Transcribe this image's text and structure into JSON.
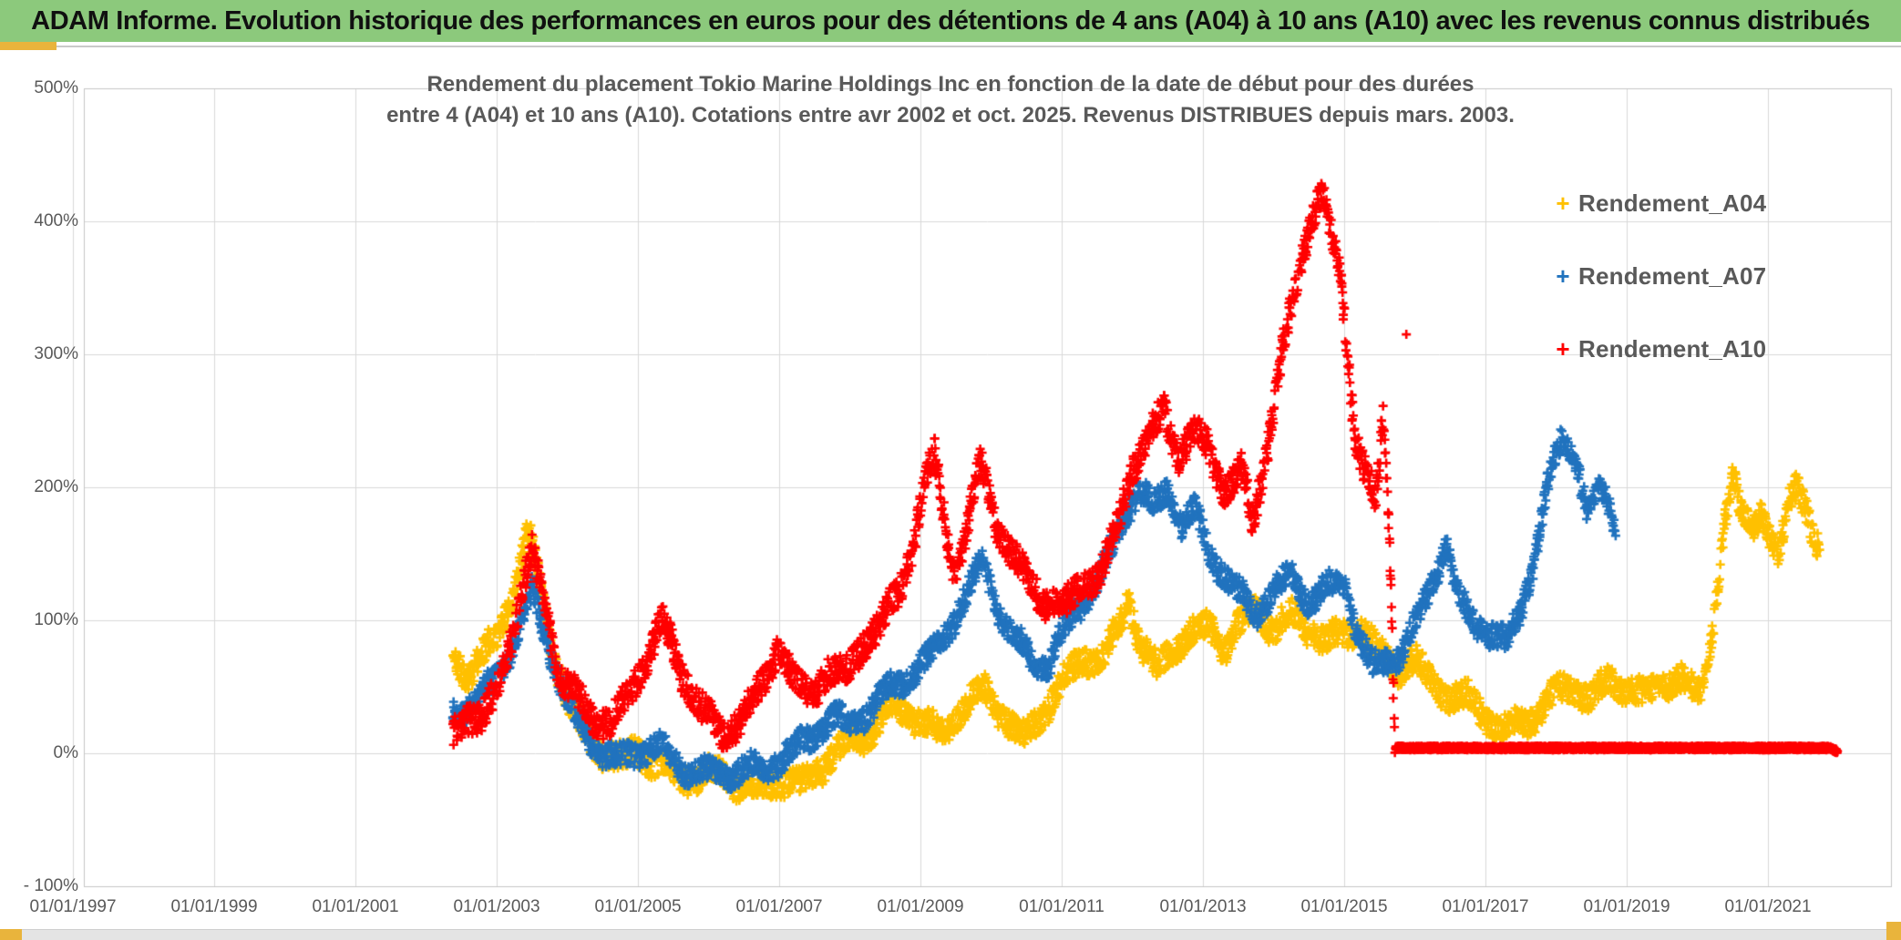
{
  "banner": {
    "title": "ADAM Informe. Evolution historique des performances en euros pour des détentions de 4 ans (A04) à 10 ans (A10) avec les revenus connus distribués"
  },
  "colors": {
    "banner_bg": "#8CC97C",
    "accent_gold": "#E9B43C",
    "grid": "#D9D9D9",
    "axis_border": "#C6C6C6",
    "label_text": "#595959",
    "series_a04": "#FFC000",
    "series_a07": "#2173BE",
    "series_a10": "#FF0000"
  },
  "chart_data": {
    "type": "scatter",
    "marker": "plus",
    "title_line1": "Rendement du placement Tokio Marine Holdings Inc en fonction de la date de début pour des durées",
    "title_line2": "entre 4 (A04) et 10 ans (A10). Cotations entre avr 2002 et oct. 2025. Revenus DISTRIBUES depuis mars. 2003.",
    "grid": true,
    "legend_position": "right-inside",
    "ylim": [
      -100,
      500
    ],
    "y_tick_labels": [
      "500%",
      "400%",
      "300%",
      "200%",
      "100%",
      "0%",
      "- 100%"
    ],
    "x_tick_labels": [
      "01/01/1997",
      "01/01/1999",
      "01/01/2001",
      "01/01/2003",
      "01/01/2005",
      "01/01/2007",
      "01/01/2009",
      "01/01/2011",
      "01/01/2013",
      "01/01/2015",
      "01/01/2017",
      "01/01/2019",
      "01/01/2021"
    ],
    "series": [
      {
        "name": "Rendement_A04",
        "color": "#FFC000",
        "start": 2002.38,
        "end": 2021.74,
        "noise": 10,
        "seed": 11,
        "keypoints": [
          [
            2002.38,
            70
          ],
          [
            2002.6,
            60
          ],
          [
            2002.8,
            75
          ],
          [
            2003.0,
            85
          ],
          [
            2003.2,
            115
          ],
          [
            2003.45,
            168
          ],
          [
            2003.6,
            128
          ],
          [
            2003.8,
            75
          ],
          [
            2004.0,
            42
          ],
          [
            2004.2,
            18
          ],
          [
            2004.5,
            0
          ],
          [
            2004.8,
            -6
          ],
          [
            2005.0,
            4
          ],
          [
            2005.2,
            -6
          ],
          [
            2005.5,
            -16
          ],
          [
            2005.8,
            -18
          ],
          [
            2006.1,
            -14
          ],
          [
            2006.4,
            -22
          ],
          [
            2006.7,
            -27
          ],
          [
            2007.0,
            -20
          ],
          [
            2007.3,
            -24
          ],
          [
            2007.6,
            -10
          ],
          [
            2007.9,
            6
          ],
          [
            2008.2,
            12
          ],
          [
            2008.5,
            28
          ],
          [
            2008.8,
            34
          ],
          [
            2009.0,
            24
          ],
          [
            2009.3,
            14
          ],
          [
            2009.6,
            34
          ],
          [
            2009.9,
            48
          ],
          [
            2010.1,
            34
          ],
          [
            2010.45,
            10
          ],
          [
            2010.7,
            28
          ],
          [
            2011.0,
            52
          ],
          [
            2011.3,
            72
          ],
          [
            2011.6,
            72
          ],
          [
            2011.85,
            100
          ],
          [
            2011.95,
            118
          ],
          [
            2012.1,
            84
          ],
          [
            2012.35,
            62
          ],
          [
            2012.6,
            80
          ],
          [
            2012.9,
            92
          ],
          [
            2013.1,
            95
          ],
          [
            2013.3,
            80
          ],
          [
            2013.5,
            95
          ],
          [
            2013.75,
            108
          ],
          [
            2014.0,
            94
          ],
          [
            2014.25,
            103
          ],
          [
            2014.5,
            94
          ],
          [
            2014.75,
            84
          ],
          [
            2015.0,
            90
          ],
          [
            2015.25,
            94
          ],
          [
            2015.5,
            74
          ],
          [
            2015.75,
            64
          ],
          [
            2016.0,
            70
          ],
          [
            2016.2,
            54
          ],
          [
            2016.5,
            44
          ],
          [
            2016.8,
            40
          ],
          [
            2017.0,
            28
          ],
          [
            2017.25,
            17
          ],
          [
            2017.5,
            22
          ],
          [
            2017.75,
            30
          ],
          [
            2018.0,
            46
          ],
          [
            2018.25,
            50
          ],
          [
            2018.5,
            40
          ],
          [
            2018.75,
            55
          ],
          [
            2019.0,
            50
          ],
          [
            2019.25,
            42
          ],
          [
            2019.5,
            54
          ],
          [
            2019.75,
            56
          ],
          [
            2020.0,
            44
          ],
          [
            2020.1,
            55
          ],
          [
            2020.25,
            110
          ],
          [
            2020.4,
            175
          ],
          [
            2020.5,
            205
          ],
          [
            2020.6,
            185
          ],
          [
            2020.75,
            172
          ],
          [
            2020.9,
            183
          ],
          [
            2021.0,
            165
          ],
          [
            2021.15,
            144
          ],
          [
            2021.3,
            192
          ],
          [
            2021.42,
            207
          ],
          [
            2021.55,
            183
          ],
          [
            2021.65,
            158
          ],
          [
            2021.74,
            150
          ]
        ]
      },
      {
        "name": "Rendement_A07",
        "color": "#2173BE",
        "start": 2002.38,
        "end": 2018.85,
        "noise": 9,
        "seed": 22,
        "keypoints": [
          [
            2002.38,
            32
          ],
          [
            2002.6,
            36
          ],
          [
            2002.9,
            50
          ],
          [
            2003.1,
            66
          ],
          [
            2003.3,
            92
          ],
          [
            2003.5,
            120
          ],
          [
            2003.7,
            88
          ],
          [
            2003.9,
            52
          ],
          [
            2004.1,
            28
          ],
          [
            2004.4,
            4
          ],
          [
            2004.7,
            -6
          ],
          [
            2005.0,
            2
          ],
          [
            2005.3,
            5
          ],
          [
            2005.6,
            -10
          ],
          [
            2005.9,
            -14
          ],
          [
            2006.2,
            -16
          ],
          [
            2006.5,
            -13
          ],
          [
            2006.8,
            -10
          ],
          [
            2007.0,
            -5
          ],
          [
            2007.2,
            2
          ],
          [
            2007.5,
            15
          ],
          [
            2007.8,
            27
          ],
          [
            2008.0,
            20
          ],
          [
            2008.3,
            34
          ],
          [
            2008.6,
            50
          ],
          [
            2008.9,
            60
          ],
          [
            2009.1,
            70
          ],
          [
            2009.4,
            94
          ],
          [
            2009.65,
            118
          ],
          [
            2009.9,
            146
          ],
          [
            2010.1,
            108
          ],
          [
            2010.3,
            88
          ],
          [
            2010.55,
            74
          ],
          [
            2010.8,
            64
          ],
          [
            2011.0,
            88
          ],
          [
            2011.2,
            108
          ],
          [
            2011.5,
            128
          ],
          [
            2011.7,
            152
          ],
          [
            2011.9,
            182
          ],
          [
            2012.1,
            198
          ],
          [
            2012.3,
            184
          ],
          [
            2012.5,
            200
          ],
          [
            2012.7,
            172
          ],
          [
            2012.9,
            182
          ],
          [
            2013.1,
            150
          ],
          [
            2013.3,
            135
          ],
          [
            2013.5,
            120
          ],
          [
            2013.75,
            105
          ],
          [
            2014.0,
            122
          ],
          [
            2014.25,
            132
          ],
          [
            2014.5,
            114
          ],
          [
            2014.75,
            124
          ],
          [
            2015.0,
            128
          ],
          [
            2015.2,
            88
          ],
          [
            2015.4,
            64
          ],
          [
            2015.6,
            70
          ],
          [
            2015.8,
            74
          ],
          [
            2016.1,
            108
          ],
          [
            2016.45,
            158
          ],
          [
            2016.6,
            118
          ],
          [
            2016.8,
            100
          ],
          [
            2017.0,
            94
          ],
          [
            2017.3,
            82
          ],
          [
            2017.5,
            108
          ],
          [
            2017.7,
            148
          ],
          [
            2017.9,
            205
          ],
          [
            2018.1,
            240
          ],
          [
            2018.3,
            218
          ],
          [
            2018.45,
            178
          ],
          [
            2018.6,
            198
          ],
          [
            2018.75,
            188
          ],
          [
            2018.85,
            172
          ]
        ]
      },
      {
        "name": "Rendement_A10",
        "color": "#FF0000",
        "start": 2002.38,
        "end": 2021.98,
        "noise": 11,
        "seed": 33,
        "flat_after": 2015.72,
        "flat_noise": 1.4,
        "outliers": [
          [
            2015.88,
            315
          ]
        ],
        "keypoints": [
          [
            2002.38,
            15
          ],
          [
            2002.6,
            30
          ],
          [
            2002.8,
            24
          ],
          [
            2003.0,
            46
          ],
          [
            2003.2,
            88
          ],
          [
            2003.5,
            150
          ],
          [
            2003.7,
            108
          ],
          [
            2003.9,
            58
          ],
          [
            2004.1,
            44
          ],
          [
            2004.35,
            27
          ],
          [
            2004.6,
            24
          ],
          [
            2004.85,
            40
          ],
          [
            2005.1,
            70
          ],
          [
            2005.35,
            100
          ],
          [
            2005.6,
            62
          ],
          [
            2005.9,
            34
          ],
          [
            2006.2,
            12
          ],
          [
            2006.5,
            30
          ],
          [
            2006.75,
            48
          ],
          [
            2007.0,
            84
          ],
          [
            2007.2,
            55
          ],
          [
            2007.45,
            44
          ],
          [
            2007.7,
            64
          ],
          [
            2007.95,
            58
          ],
          [
            2008.2,
            84
          ],
          [
            2008.45,
            98
          ],
          [
            2008.7,
            122
          ],
          [
            2008.9,
            158
          ],
          [
            2009.05,
            205
          ],
          [
            2009.2,
            222
          ],
          [
            2009.45,
            140
          ],
          [
            2009.6,
            152
          ],
          [
            2009.85,
            220
          ],
          [
            2010.1,
            168
          ],
          [
            2010.3,
            148
          ],
          [
            2010.55,
            128
          ],
          [
            2010.8,
            114
          ],
          [
            2011.05,
            110
          ],
          [
            2011.3,
            128
          ],
          [
            2011.55,
            133
          ],
          [
            2011.8,
            172
          ],
          [
            2012.0,
            216
          ],
          [
            2012.2,
            232
          ],
          [
            2012.45,
            258
          ],
          [
            2012.65,
            224
          ],
          [
            2012.9,
            242
          ],
          [
            2013.05,
            232
          ],
          [
            2013.3,
            198
          ],
          [
            2013.55,
            212
          ],
          [
            2013.7,
            172
          ],
          [
            2013.9,
            228
          ],
          [
            2014.1,
            295
          ],
          [
            2014.3,
            345
          ],
          [
            2014.5,
            398
          ],
          [
            2014.69,
            425
          ],
          [
            2014.8,
            392
          ],
          [
            2014.95,
            358
          ],
          [
            2015.05,
            298
          ],
          [
            2015.15,
            242
          ],
          [
            2015.3,
            212
          ],
          [
            2015.45,
            188
          ],
          [
            2015.55,
            250
          ],
          [
            2015.63,
            182
          ],
          [
            2015.68,
            90
          ],
          [
            2015.72,
            4
          ],
          [
            2021.88,
            4
          ],
          [
            2021.98,
            1
          ]
        ]
      }
    ]
  }
}
